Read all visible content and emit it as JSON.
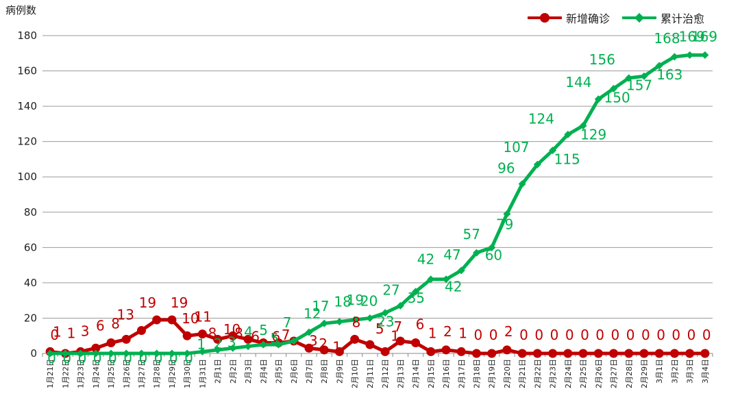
{
  "chart_data": {
    "type": "line",
    "ylabel": "病例数",
    "ylim": [
      0,
      180
    ],
    "yticks": [
      0,
      20,
      40,
      60,
      80,
      100,
      120,
      140,
      160,
      180
    ],
    "grid": true,
    "legend_position": "top-right",
    "categories": [
      "1月21日",
      "1月22日",
      "1月23日",
      "1月24日",
      "1月25日",
      "1月26日",
      "1月27日",
      "1月28日",
      "1月29日",
      "1月30日",
      "1月31日",
      "2月1日",
      "2月2日",
      "2月3日",
      "2月4日",
      "2月5日",
      "2月6日",
      "2月7日",
      "2月8日",
      "2月9日",
      "2月10日",
      "2月11日",
      "2月12日",
      "2月13日",
      "2月14日",
      "2月15日",
      "2月16日",
      "2月17日",
      "2月18日",
      "2月19日",
      "2月20日",
      "2月21日",
      "2月22日",
      "2月23日",
      "2月24日",
      "2月25日",
      "2月26日",
      "2月27日",
      "2月28日",
      "2月29日",
      "3月1日",
      "3月2日",
      "3月3日",
      "3月4日"
    ],
    "series": [
      {
        "name": "新增确诊",
        "color": "#c00000",
        "marker": "circle",
        "values": [
          1,
          0,
          1,
          3,
          6,
          8,
          13,
          19,
          19,
          10,
          11,
          8,
          10,
          8,
          6,
          6,
          7,
          3,
          2,
          1,
          8,
          5,
          1,
          7,
          6,
          1,
          2,
          1,
          0,
          0,
          2,
          0,
          0,
          0,
          0,
          0,
          0,
          0,
          0,
          0,
          0,
          0,
          0,
          0
        ],
        "labels": [
          "1",
          "0",
          "1",
          "3",
          "6",
          "8",
          "13",
          "19",
          "19",
          "10",
          "11",
          "8",
          "10",
          "8",
          "6",
          "6",
          "7",
          "3",
          "2",
          "1",
          "8",
          "5",
          "1",
          "7",
          "6",
          "1",
          "2",
          "1",
          "0",
          "0",
          "2",
          "0",
          "0",
          "0",
          "0",
          "0",
          "0",
          "0",
          "0",
          "0",
          "0",
          "0",
          "0",
          "0"
        ]
      },
      {
        "name": "累计治愈",
        "color": "#00b050",
        "marker": "diamond",
        "values": [
          0,
          0,
          0,
          0,
          0,
          0,
          0,
          0,
          0,
          0,
          1,
          2,
          3,
          4,
          5,
          5,
          7,
          12,
          17,
          18,
          19,
          20,
          23,
          27,
          35,
          42,
          42,
          47,
          57,
          60,
          79,
          96,
          107,
          115,
          124,
          129,
          144,
          150,
          156,
          157,
          163,
          168,
          169,
          169
        ],
        "labels": [
          "0",
          "0",
          "0",
          "0",
          "0",
          "0",
          "0",
          "0",
          "0",
          "0",
          "1",
          "2",
          "3",
          "4",
          "5",
          "5",
          "7",
          "12",
          "17",
          "18",
          "19",
          "20",
          "23",
          "27",
          "35",
          "42",
          "42",
          "47",
          "57",
          "60",
          "79",
          "96",
          "107",
          "115",
          "124",
          "129",
          "144",
          "150",
          "156",
          "157",
          "163",
          "168",
          "169",
          "169"
        ]
      }
    ]
  }
}
